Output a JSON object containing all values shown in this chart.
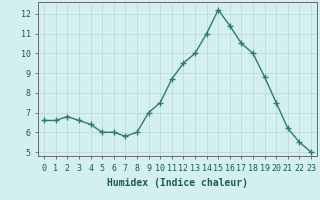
{
  "x": [
    0,
    1,
    2,
    3,
    4,
    5,
    6,
    7,
    8,
    9,
    10,
    11,
    12,
    13,
    14,
    15,
    16,
    17,
    18,
    19,
    20,
    21,
    22,
    23
  ],
  "y": [
    6.6,
    6.6,
    6.8,
    6.6,
    6.4,
    6.0,
    6.0,
    5.8,
    6.0,
    7.0,
    7.5,
    8.7,
    9.5,
    10.0,
    11.0,
    12.2,
    11.4,
    10.5,
    10.0,
    8.8,
    7.5,
    6.2,
    5.5,
    5.0
  ],
  "line_color": "#2d7d6e",
  "marker": "+",
  "marker_size": 4,
  "bg_color": "#d4efef",
  "grid_color": "#b8d8d8",
  "xlabel": "Humidex (Indice chaleur)",
  "ylim": [
    4.8,
    12.6
  ],
  "xlim": [
    -0.5,
    23.5
  ],
  "yticks": [
    5,
    6,
    7,
    8,
    9,
    10,
    11,
    12
  ],
  "xticks": [
    0,
    1,
    2,
    3,
    4,
    5,
    6,
    7,
    8,
    9,
    10,
    11,
    12,
    13,
    14,
    15,
    16,
    17,
    18,
    19,
    20,
    21,
    22,
    23
  ],
  "xlabel_fontsize": 7,
  "tick_fontsize": 6,
  "line_width": 1.0,
  "marker_edge_width": 1.0
}
